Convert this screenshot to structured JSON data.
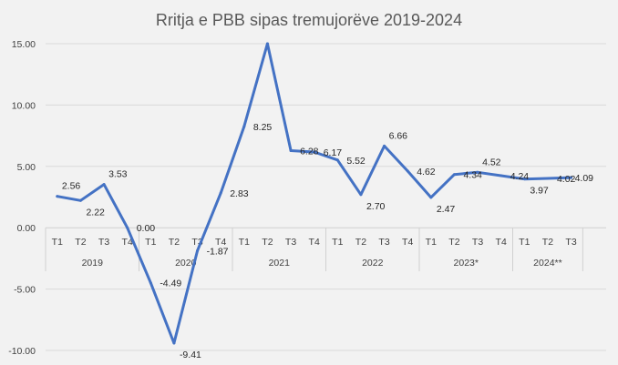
{
  "chart_data": {
    "type": "line",
    "title": "Rritja e PBB sipas tremujorëve 2019-2024",
    "ylim": [
      -10,
      15
    ],
    "yticks": [
      "15.00",
      "10.00",
      "5.00",
      "0.00",
      "-5.00",
      "-10.00"
    ],
    "grid": true,
    "legend": "none",
    "line_color": "#4472c4",
    "groups": [
      {
        "label": "2019",
        "quarters": [
          "T1",
          "T2",
          "T3",
          "T4"
        ]
      },
      {
        "label": "2020",
        "quarters": [
          "T1",
          "T2",
          "T3",
          "T4"
        ]
      },
      {
        "label": "2021",
        "quarters": [
          "T1",
          "T2",
          "T3",
          "T4"
        ]
      },
      {
        "label": "2022",
        "quarters": [
          "T1",
          "T2",
          "T3",
          "T4"
        ]
      },
      {
        "label": "2023*",
        "quarters": [
          "T1",
          "T2",
          "T3",
          "T4"
        ]
      },
      {
        "label": "2024**",
        "quarters": [
          "T1",
          "T2",
          "T3"
        ]
      }
    ],
    "series": [
      {
        "values": [
          2.56,
          2.22,
          3.53,
          0.0,
          -4.49,
          -9.41,
          -1.87,
          2.83,
          8.25,
          15.0,
          6.28,
          6.17,
          5.52,
          2.7,
          6.66,
          4.62,
          2.47,
          4.34,
          4.52,
          4.24,
          3.97,
          4.02,
          4.09
        ],
        "labels": [
          "2.56",
          "2.22",
          "3.53",
          "0.00",
          "-4.49",
          "-9.41",
          "-1.87",
          "2.83",
          "8.25",
          "",
          "6.28",
          "6.17",
          "5.52",
          "2.70",
          "6.66",
          "4.62",
          "2.47",
          "4.34",
          "4.52",
          "4.24",
          "3.97",
          "4.02",
          "4.09"
        ]
      }
    ]
  }
}
